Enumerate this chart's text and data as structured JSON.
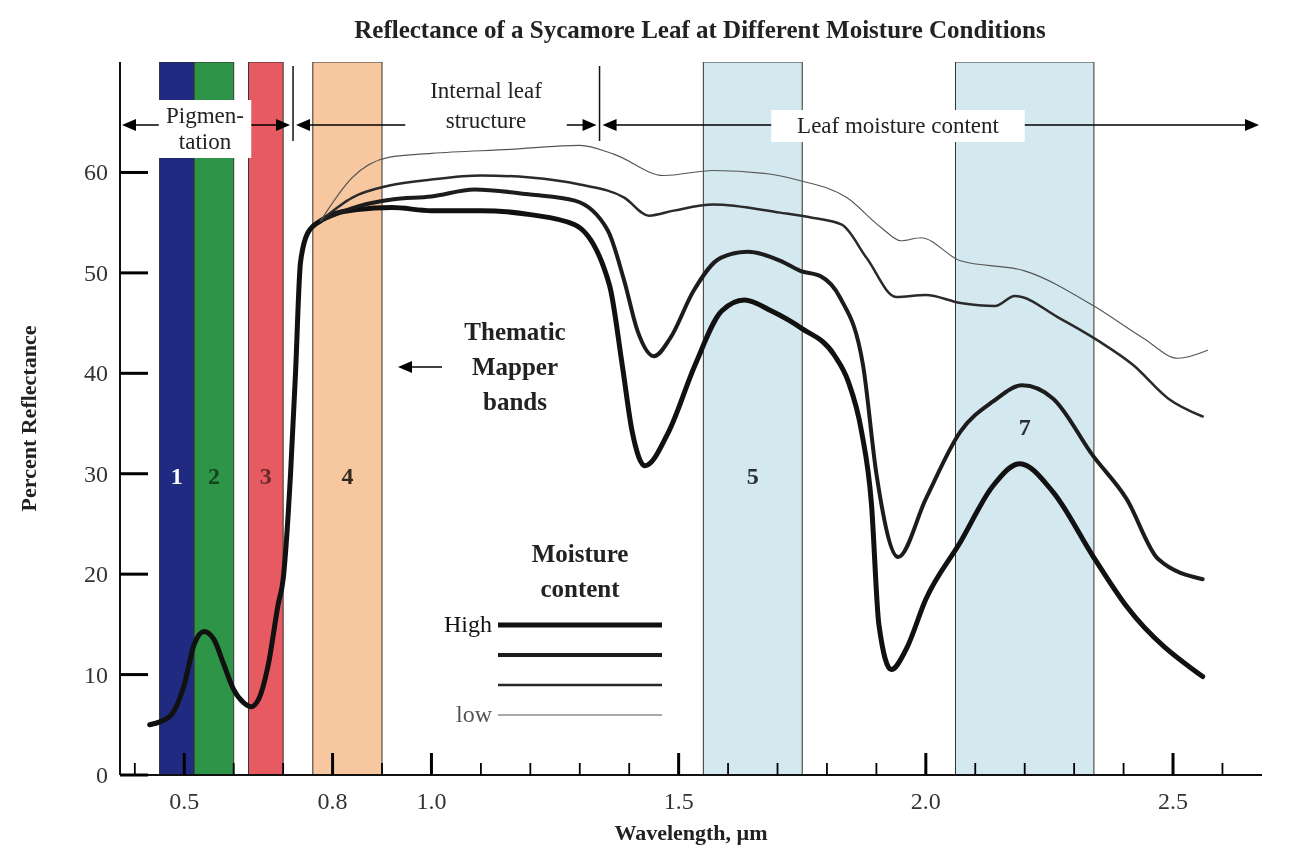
{
  "chart_data": {
    "type": "line",
    "title": "Reflectance of a Sycamore Leaf at Different Moisture Conditions",
    "xlabel": "Wavelength, µm",
    "ylabel": "Percent Reflectance",
    "legend_title": "Moisture content",
    "legend": "bottom",
    "grid": false,
    "marker": "none",
    "line_style": "solid",
    "xlim": [
      0.37,
      2.68
    ],
    "ylim": [
      0,
      71
    ],
    "xticks": [
      {
        "value": 0.4,
        "label": null
      },
      0.5,
      {
        "value": 0.6,
        "label": null
      },
      {
        "value": 0.7,
        "label": null
      },
      0.8,
      {
        "value": 0.9,
        "label": null
      },
      {
        "value": 1.0,
        "label": "1.0"
      },
      {
        "value": 1.1,
        "label": null
      },
      {
        "value": 1.2,
        "label": null
      },
      {
        "value": 1.3,
        "label": null
      },
      {
        "value": 1.4,
        "label": null
      },
      1.5,
      {
        "value": 1.6,
        "label": null
      },
      {
        "value": 1.7,
        "label": null
      },
      {
        "value": 1.8,
        "label": null
      },
      {
        "value": 1.9,
        "label": null
      },
      {
        "value": 2.0,
        "label": "2.0"
      },
      {
        "value": 2.1,
        "label": null
      },
      {
        "value": 2.2,
        "label": null
      },
      {
        "value": 2.3,
        "label": null
      },
      {
        "value": 2.4,
        "label": null
      },
      2.5,
      {
        "value": 2.6,
        "label": null
      }
    ],
    "yticks": [
      0,
      10,
      20,
      30,
      40,
      50,
      60
    ],
    "series": [
      {
        "name": "High",
        "color": "#111111",
        "x": [
          0.43,
          0.47,
          0.5,
          0.52,
          0.54,
          0.56,
          0.58,
          0.6,
          0.62,
          0.635,
          0.65,
          0.67,
          0.69,
          0.7,
          0.715,
          0.725,
          0.735,
          0.75,
          0.776,
          0.8,
          0.85,
          0.92,
          1.0,
          1.1,
          1.2,
          1.29,
          1.36,
          1.386,
          1.406,
          1.432,
          1.48,
          1.533,
          1.587,
          1.633,
          1.688,
          1.748,
          1.815,
          1.843,
          1.87,
          1.89,
          1.905,
          1.93,
          1.96,
          2.0,
          2.07,
          2.136,
          2.19,
          2.257,
          2.338,
          2.406,
          2.56
        ],
        "values": [
          5.0,
          5.8,
          9,
          13,
          14.3,
          13.5,
          11,
          8.5,
          7.2,
          6.8,
          7.5,
          11,
          17,
          19.5,
          30,
          40,
          51,
          54,
          55.2,
          55.8,
          56.3,
          56.5,
          56.2,
          56.2,
          55.8,
          54.8,
          48.8,
          40.8,
          34.2,
          30.8,
          34.2,
          40.8,
          46.2,
          47.3,
          46.2,
          44.5,
          41.8,
          39.2,
          34.2,
          27,
          15,
          10.5,
          12.5,
          17.5,
          23.2,
          28.8,
          31,
          28.2,
          21.8,
          16.8,
          9.8
        ]
      },
      {
        "color": "#1c1c1c",
        "x": [
          0.776,
          0.85,
          0.92,
          1.0,
          1.087,
          1.2,
          1.29,
          1.357,
          1.39,
          1.417,
          1.45,
          1.483,
          1.53,
          1.585,
          1.64,
          1.706,
          1.746,
          1.786,
          1.827,
          1.873,
          1.9,
          1.944,
          2.0,
          2.07,
          2.136,
          2.195,
          2.257,
          2.338,
          2.406,
          2.47,
          2.56
        ],
        "values": [
          55.2,
          56.6,
          57.3,
          57.6,
          58.3,
          57.8,
          57.2,
          54.2,
          49.2,
          44.2,
          41.7,
          43.5,
          48.2,
          51.5,
          52.1,
          51.2,
          50.2,
          49.7,
          47.5,
          40.8,
          30,
          21.7,
          27.5,
          34.2,
          37.2,
          38.8,
          37.5,
          31.8,
          27.5,
          21.5,
          19.5
        ]
      },
      {
        "color": "#2a2a2a",
        "x": [
          0.776,
          0.84,
          0.915,
          1.0,
          1.1,
          1.2,
          1.3,
          1.39,
          1.44,
          1.49,
          1.57,
          1.705,
          1.77,
          1.83,
          1.88,
          1.94,
          2.0,
          2.07,
          2.14,
          2.18,
          2.27,
          2.35,
          2.42,
          2.49,
          2.56
        ],
        "values": [
          55.2,
          57.5,
          58.7,
          59.3,
          59.7,
          59.5,
          58.8,
          57.5,
          55.7,
          56.2,
          56.8,
          56,
          55.5,
          54.8,
          51.5,
          47.6,
          47.8,
          47,
          46.7,
          47.7,
          45.5,
          43.2,
          40.8,
          37.5,
          35.7
        ]
      },
      {
        "name": "low",
        "color": "#555555",
        "x": [
          0.776,
          0.84,
          0.913,
          1.0,
          1.16,
          1.3,
          1.37,
          1.47,
          1.57,
          1.69,
          1.745,
          1.84,
          1.91,
          1.95,
          1.99,
          2.07,
          2.2,
          2.34,
          2.44,
          2.51,
          2.57
        ],
        "values": [
          55.2,
          59.5,
          61.5,
          61.9,
          62.3,
          62.7,
          61.8,
          59.7,
          60.2,
          59.8,
          59.2,
          57.5,
          54.5,
          53.2,
          53.5,
          51.2,
          50.2,
          46.7,
          43.5,
          41.5,
          42.3
        ]
      }
    ],
    "bands": [
      {
        "axis": "x",
        "from": 0.45,
        "to": 0.52,
        "label": "1",
        "color": "#1f2a80"
      },
      {
        "axis": "x",
        "from": 0.52,
        "to": 0.6,
        "label": "2",
        "color": "#2e9447"
      },
      {
        "axis": "x",
        "from": 0.63,
        "to": 0.7,
        "label": "3",
        "color": "#e85a62"
      },
      {
        "axis": "x",
        "from": 0.76,
        "to": 0.9,
        "label": "4",
        "color": "#f7c8a0"
      },
      {
        "axis": "x",
        "from": 1.55,
        "to": 1.75,
        "label": "5",
        "color": "#d3e8ef"
      },
      {
        "axis": "x",
        "from": 2.06,
        "to": 2.34,
        "label": "7",
        "color": "#d3e8ef"
      }
    ],
    "annotations": [
      "Pigmen-\ntation",
      "Internal leaf\nstructure",
      "Leaf moisture content",
      "Thematic\nMapper\nbands"
    ]
  }
}
